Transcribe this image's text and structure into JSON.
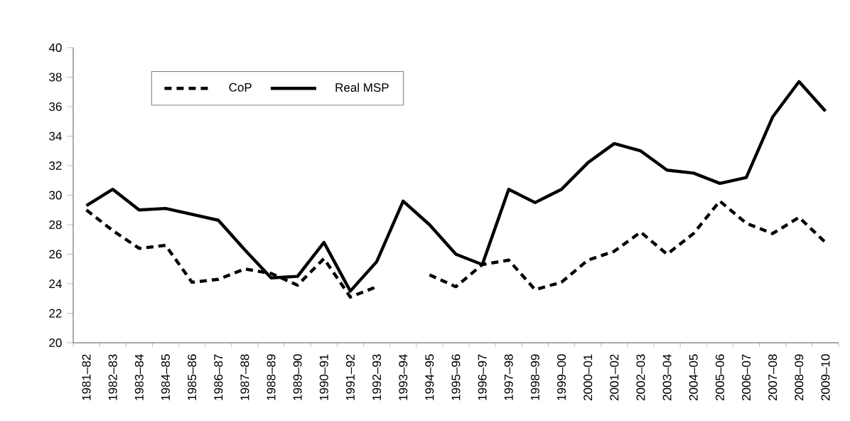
{
  "chart_data": {
    "type": "line",
    "categories": [
      "1981–82",
      "1982–83",
      "1983–84",
      "1984–85",
      "1985–86",
      "1986–87",
      "1987–88",
      "1988–89",
      "1989–90",
      "1990–91",
      "1991–92",
      "1992–93",
      "1993–94",
      "1994–95",
      "1995–96",
      "1996–97",
      "1997–98",
      "1998–99",
      "1999–00",
      "2000–01",
      "2001–02",
      "2002–03",
      "2003–04",
      "2004–05",
      "2005–06",
      "2006–07",
      "2007–08",
      "2008–09",
      "2009–10"
    ],
    "series": [
      {
        "name": "CoP",
        "color": "#000000",
        "line_style": "dashed",
        "values": [
          29.0,
          27.6,
          26.4,
          26.6,
          24.1,
          24.3,
          25.0,
          24.7,
          23.9,
          25.7,
          23.1,
          23.8,
          null,
          24.6,
          23.8,
          25.3,
          25.6,
          23.6,
          24.1,
          25.6,
          26.2,
          27.5,
          26.0,
          27.4,
          29.6,
          28.1,
          27.4,
          28.5,
          26.8
        ]
      },
      {
        "name": "Real MSP",
        "color": "#000000",
        "line_style": "solid",
        "values": [
          29.3,
          30.4,
          29.0,
          29.1,
          28.7,
          28.3,
          26.3,
          24.4,
          24.5,
          26.8,
          23.5,
          25.5,
          29.6,
          28.0,
          26.0,
          25.3,
          30.4,
          29.5,
          30.4,
          32.2,
          33.5,
          33.0,
          31.7,
          31.5,
          30.8,
          31.2,
          35.3,
          37.7,
          35.7
        ]
      }
    ],
    "ylim": [
      20,
      40
    ],
    "yticks": [
      20,
      22,
      24,
      26,
      28,
      30,
      32,
      34,
      36,
      38,
      40
    ],
    "grid": false,
    "legend": "top left",
    "marker": "none"
  }
}
